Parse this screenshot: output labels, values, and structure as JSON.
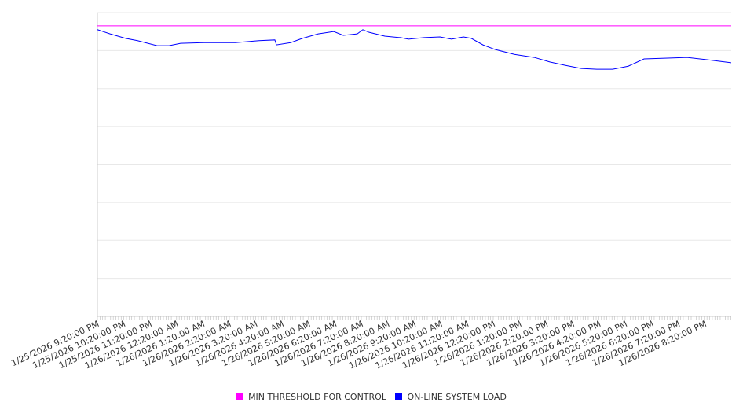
{
  "chart_data": {
    "type": "line",
    "title": "",
    "xlabel": "",
    "ylabel": "",
    "x_unit": "hours since 1/25/2026 9:20:00 PM",
    "xlim": [
      0,
      24
    ],
    "ylim": [
      0,
      8
    ],
    "y_grid_step": 1,
    "y_tick_labels_shown": false,
    "grid": true,
    "legend_position": "bottom",
    "x_tick_labels": [
      "1/25/2026 9:20:00 PM",
      "1/25/2026 10:20:00 PM",
      "1/25/2026 11:20:00 PM",
      "1/26/2026 12:20:00 AM",
      "1/26/2026 1:20:00 AM",
      "1/26/2026 2:20:00 AM",
      "1/26/2026 3:20:00 AM",
      "1/26/2026 4:20:00 AM",
      "1/26/2026 5:20:00 AM",
      "1/26/2026 6:20:00 AM",
      "1/26/2026 7:20:00 AM",
      "1/26/2026 8:20:00 AM",
      "1/26/2026 9:20:00 AM",
      "1/26/2026 10:20:00 AM",
      "1/26/2026 11:20:00 AM",
      "1/26/2026 12:20:00 PM",
      "1/26/2026 1:20:00 PM",
      "1/26/2026 2:20:00 PM",
      "1/26/2026 3:20:00 PM",
      "1/26/2026 4:20:00 PM",
      "1/26/2026 5:20:00 PM",
      "1/26/2026 6:20:00 PM",
      "1/26/2026 7:20:00 PM",
      "1/26/2026 8:20:00 PM"
    ],
    "series": [
      {
        "name": "MIN THRESHOLD FOR CONTROL",
        "color": "#ff00ff",
        "x": [
          0,
          24
        ],
        "values": [
          7.65,
          7.65
        ]
      },
      {
        "name": "ON-LINE SYSTEM LOAD",
        "color": "#0000ff",
        "x": [
          0,
          0.48,
          1.07,
          1.52,
          2.26,
          2.71,
          3.15,
          4.04,
          5.23,
          6.12,
          6.72,
          6.78,
          7.32,
          7.76,
          8.36,
          8.95,
          9.31,
          9.84,
          10.05,
          10.29,
          10.88,
          11.48,
          11.78,
          12.37,
          12.97,
          13.41,
          13.86,
          14.16,
          14.6,
          15.05,
          15.79,
          16.54,
          17.13,
          17.73,
          18.32,
          18.91,
          19.51,
          20.1,
          20.7,
          21.59,
          22.33,
          23.08,
          24.0
        ],
        "values": [
          7.55,
          7.44,
          7.32,
          7.26,
          7.13,
          7.13,
          7.19,
          7.21,
          7.21,
          7.26,
          7.28,
          7.15,
          7.21,
          7.32,
          7.44,
          7.5,
          7.4,
          7.44,
          7.55,
          7.48,
          7.38,
          7.34,
          7.3,
          7.34,
          7.36,
          7.3,
          7.36,
          7.32,
          7.15,
          7.03,
          6.9,
          6.82,
          6.7,
          6.61,
          6.53,
          6.51,
          6.51,
          6.59,
          6.78,
          6.8,
          6.82,
          6.76,
          6.68
        ]
      }
    ]
  }
}
